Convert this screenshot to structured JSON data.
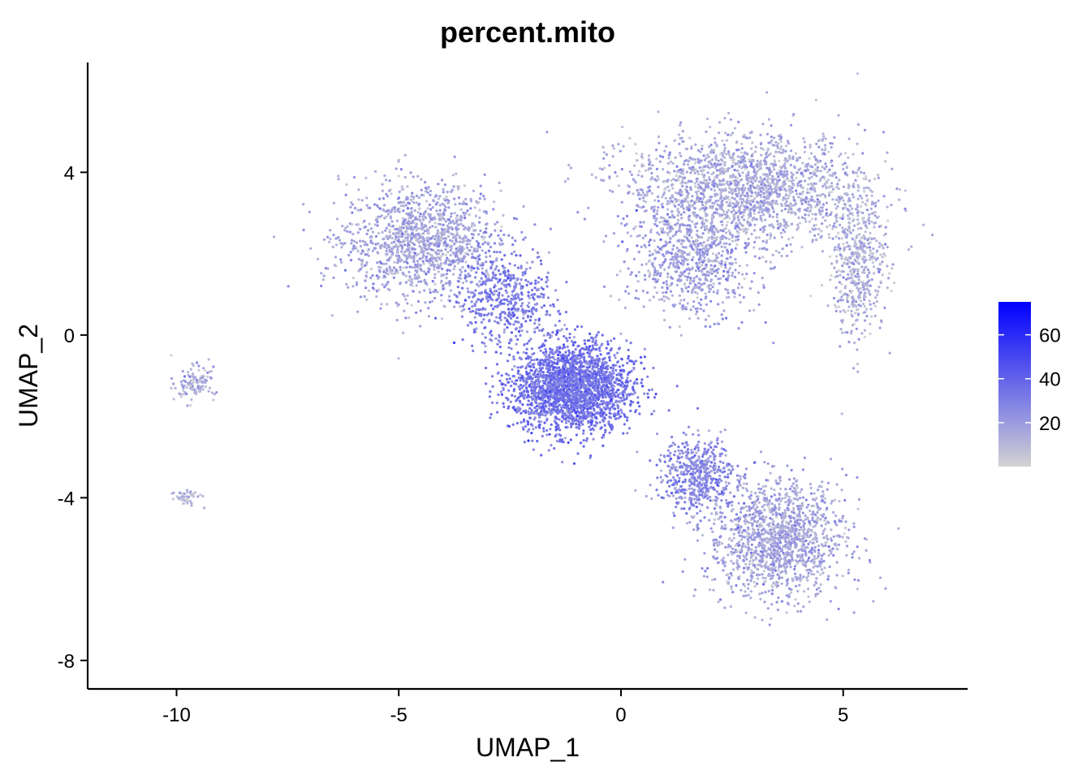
{
  "chart_data": {
    "type": "scatter",
    "title": "percent.mito",
    "xlabel": "UMAP_1",
    "ylabel": "UMAP_2",
    "xlim": [
      -12.0,
      7.8
    ],
    "ylim": [
      -8.7,
      6.7
    ],
    "x_ticks": [
      -10,
      -5,
      0,
      5
    ],
    "x_tick_labels": [
      "-10",
      "-5",
      "0",
      "5"
    ],
    "y_ticks": [
      -8,
      -4,
      0,
      4
    ],
    "y_tick_labels": [
      "-8",
      "-4",
      "0",
      "4"
    ],
    "grid": false,
    "point_color_variable": "percent.mito",
    "color_scale": {
      "low_color": "#d3d3d3",
      "high_color": "#0000ff",
      "range": [
        0,
        75
      ],
      "legend_ticks": [
        20,
        40,
        60
      ],
      "legend_tick_labels": [
        "20",
        "40",
        "60"
      ],
      "legend_position": "right"
    },
    "point_regions": [
      {
        "region": "left-upper-arm",
        "center": [
          -4.5,
          2.3
        ],
        "spread": [
          1.6,
          1.3
        ],
        "mean_value": 16,
        "count": 1300
      },
      {
        "region": "top-right-region",
        "center": [
          2.8,
          3.6
        ],
        "spread": [
          2.4,
          1.2
        ],
        "mean_value": 14,
        "count": 1800
      },
      {
        "region": "right-vertical-band",
        "center": [
          5.3,
          1.8
        ],
        "spread": [
          0.6,
          1.6
        ],
        "mean_value": 12,
        "count": 500
      },
      {
        "region": "upper-middle-band",
        "center": [
          1.6,
          1.8
        ],
        "spread": [
          1.3,
          1.2
        ],
        "mean_value": 18,
        "count": 700
      },
      {
        "region": "central-dense-cluster",
        "center": [
          -1.1,
          -1.3
        ],
        "spread": [
          1.2,
          1.0
        ],
        "mean_value": 34,
        "count": 2300
      },
      {
        "region": "center-connection",
        "center": [
          -2.6,
          0.9
        ],
        "spread": [
          1.0,
          1.0
        ],
        "mean_value": 30,
        "count": 500
      },
      {
        "region": "lower-right-lobe",
        "center": [
          3.5,
          -5.0
        ],
        "spread": [
          1.4,
          1.3
        ],
        "mean_value": 16,
        "count": 1400
      },
      {
        "region": "lower-diagonal-arm",
        "center": [
          1.7,
          -3.4
        ],
        "spread": [
          0.8,
          0.8
        ],
        "mean_value": 26,
        "count": 500
      },
      {
        "region": "small-cluster-ring",
        "center": [
          -9.6,
          -1.2
        ],
        "spread": [
          0.4,
          0.4
        ],
        "mean_value": 14,
        "count": 110
      },
      {
        "region": "small-cluster-bottom",
        "center": [
          -9.8,
          -4.0
        ],
        "spread": [
          0.3,
          0.15
        ],
        "mean_value": 10,
        "count": 50
      }
    ]
  }
}
